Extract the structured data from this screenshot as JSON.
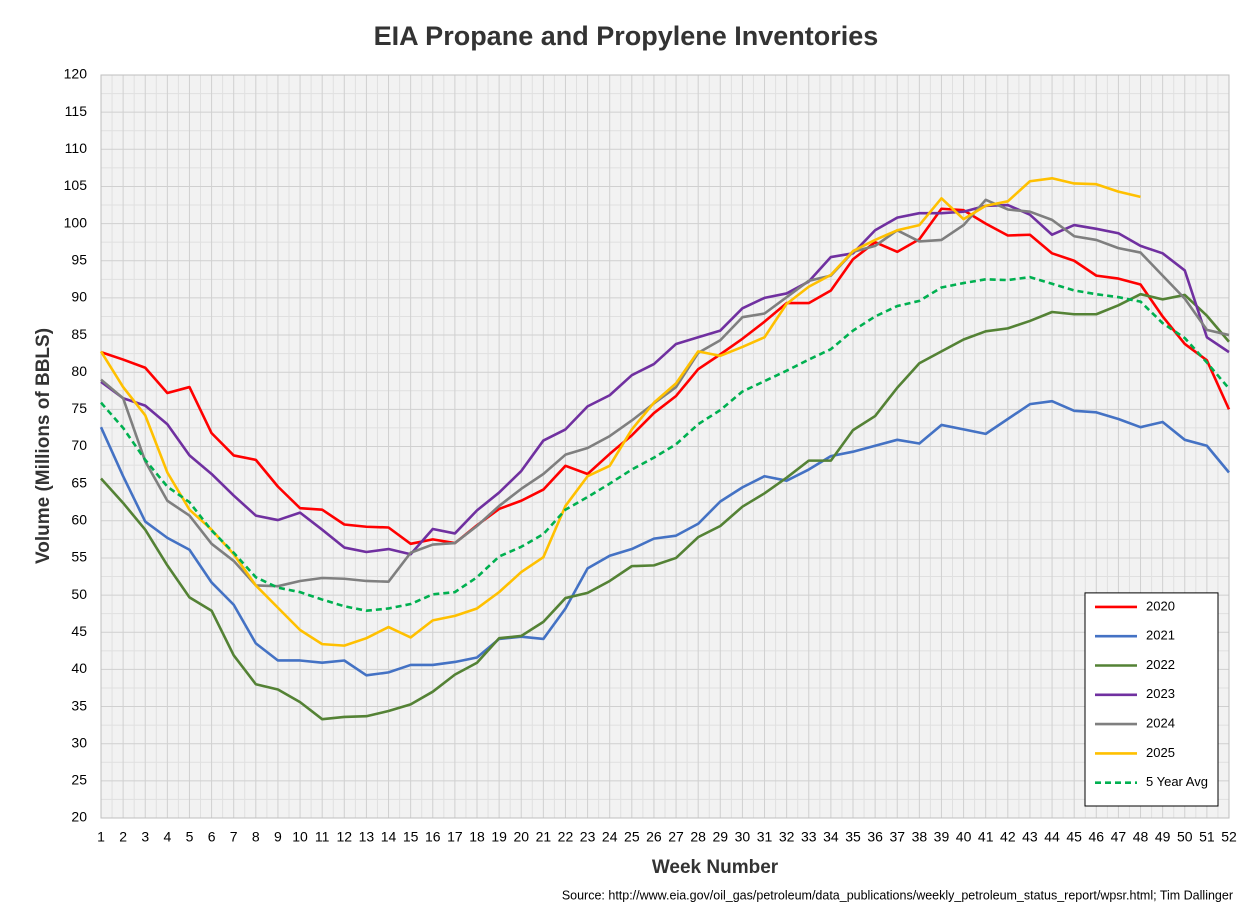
{
  "chart_data": {
    "type": "line",
    "title": "EIA Propane and Propylene Inventories",
    "xlabel": "Week Number",
    "ylabel": "Volume (Millions of BBLS)",
    "source": "Source: http://www.eia.gov/oil_gas/petroleum/data_publications/weekly_petroleum_status_report/wpsr.html; Tim Dallinger",
    "x": [
      1,
      2,
      3,
      4,
      5,
      6,
      7,
      8,
      9,
      10,
      11,
      12,
      13,
      14,
      15,
      16,
      17,
      18,
      19,
      20,
      21,
      22,
      23,
      24,
      25,
      26,
      27,
      28,
      29,
      30,
      31,
      32,
      33,
      34,
      35,
      36,
      37,
      38,
      39,
      40,
      41,
      42,
      43,
      44,
      45,
      46,
      47,
      48,
      49,
      50,
      51,
      52
    ],
    "xlim": [
      1,
      52
    ],
    "xticks": [
      1,
      2,
      3,
      4,
      5,
      6,
      7,
      8,
      9,
      10,
      11,
      12,
      13,
      14,
      15,
      16,
      17,
      18,
      19,
      20,
      21,
      22,
      23,
      24,
      25,
      26,
      27,
      28,
      29,
      30,
      31,
      32,
      33,
      34,
      35,
      36,
      37,
      38,
      39,
      40,
      41,
      42,
      43,
      44,
      45,
      46,
      47,
      48,
      49,
      50,
      51,
      52
    ],
    "ylim": [
      20,
      120
    ],
    "yticks": [
      20,
      25,
      30,
      35,
      40,
      45,
      50,
      55,
      60,
      65,
      70,
      75,
      80,
      85,
      90,
      95,
      100,
      105,
      110,
      115,
      120
    ],
    "grid": true,
    "minor_grid": true,
    "legend": "lower right",
    "series": [
      {
        "name": "2020",
        "color": "#ff0000",
        "values": [
          82.7,
          81.7,
          80.6,
          77.2,
          78,
          71.8,
          68.8,
          68.2,
          64.6,
          61.7,
          61.5,
          59.5,
          59.2,
          59.1,
          56.9,
          57.5,
          57,
          59.4,
          61.6,
          62.7,
          64.2,
          67.4,
          66.3,
          69,
          71.5,
          74.5,
          76.8,
          80.4,
          82.4,
          84.5,
          86.8,
          89.3,
          89.3,
          91,
          95.2,
          97.5,
          96.2,
          97.9,
          102,
          101.8,
          100,
          98.4,
          98.5,
          96,
          95,
          93,
          92.6,
          91.8,
          87.5,
          83.8,
          81.6,
          75
        ]
      },
      {
        "name": "2021",
        "color": "#4472c4",
        "values": [
          72.6,
          66,
          59.9,
          57.7,
          56.1,
          51.7,
          48.7,
          43.5,
          41.2,
          41.2,
          40.9,
          41.2,
          39.2,
          39.6,
          40.6,
          40.6,
          41,
          41.6,
          44.1,
          44.4,
          44.1,
          48.2,
          53.6,
          55.3,
          56.2,
          57.6,
          58,
          59.6,
          62.6,
          64.5,
          66,
          65.4,
          66.9,
          68.7,
          69.3,
          70.1,
          70.9,
          70.4,
          72.9,
          72.3,
          71.7,
          73.7,
          75.7,
          76.1,
          74.8,
          74.6,
          73.7,
          72.6,
          73.3,
          70.9,
          70.1,
          66.5
        ]
      },
      {
        "name": "2022",
        "color": "#548235",
        "values": [
          65.7,
          62.4,
          58.8,
          54,
          49.7,
          47.9,
          41.9,
          38,
          37.3,
          35.6,
          33.3,
          33.6,
          33.7,
          34.4,
          35.3,
          37,
          39.3,
          40.9,
          44.2,
          44.5,
          46.4,
          49.6,
          50.3,
          51.9,
          53.9,
          54,
          55,
          57.8,
          59.3,
          61.9,
          63.7,
          65.8,
          68.1,
          68.1,
          72.2,
          74.1,
          77.9,
          81.2,
          82.8,
          84.4,
          85.5,
          85.9,
          86.9,
          88.1,
          87.8,
          87.8,
          89,
          90.5,
          89.8,
          90.4,
          87.6,
          84.1
        ]
      },
      {
        "name": "2023",
        "color": "#7030a0",
        "values": [
          78.7,
          76.5,
          75.5,
          73,
          68.8,
          66.3,
          63.4,
          60.7,
          60.1,
          61.1,
          58.8,
          56.4,
          55.8,
          56.2,
          55.5,
          58.9,
          58.3,
          61.4,
          63.8,
          66.7,
          70.8,
          72.3,
          75.4,
          76.9,
          79.6,
          81.1,
          83.8,
          84.7,
          85.6,
          88.6,
          90,
          90.6,
          92.2,
          95.5,
          96,
          99.1,
          100.8,
          101.4,
          101.4,
          101.6,
          102.4,
          102.5,
          101.2,
          98.5,
          99.8,
          99.3,
          98.7,
          97,
          96,
          93.7,
          84.7,
          82.7
        ]
      },
      {
        "name": "2024",
        "color": "#7f7f7f",
        "values": [
          79,
          76.5,
          68,
          62.7,
          60.7,
          56.9,
          54.6,
          51.3,
          51.2,
          51.9,
          52.3,
          52.2,
          51.9,
          51.8,
          55.7,
          56.8,
          57,
          59.3,
          62,
          64.3,
          66.3,
          68.9,
          69.8,
          71.4,
          73.5,
          75.8,
          78,
          82.6,
          84.3,
          87.4,
          87.9,
          90.1,
          92.3,
          93,
          96.2,
          97,
          99.1,
          97.6,
          97.8,
          99.8,
          103.2,
          101.9,
          101.6,
          100.5,
          98.3,
          97.8,
          96.7,
          96.1,
          93,
          89.9,
          85.7,
          85
        ]
      },
      {
        "name": "2025",
        "color": "#ffc000",
        "values": [
          82.8,
          78,
          74.2,
          66.5,
          61.5,
          58.8,
          55.5,
          51.3,
          48.3,
          45.3,
          43.4,
          43.2,
          44.2,
          45.7,
          44.3,
          46.6,
          47.2,
          48.2,
          50.4,
          53.1,
          55.1,
          62,
          66,
          67.4,
          72.3,
          75.9,
          78.5,
          82.8,
          82.2,
          83.4,
          84.7,
          89.2,
          91.5,
          93.1,
          96.3,
          97.8,
          99.1,
          99.8,
          103.4,
          100.6,
          102.4,
          103,
          105.7,
          106.1,
          105.4,
          105.3,
          104.3,
          103.6,
          null,
          null,
          null,
          null
        ]
      },
      {
        "name": "5 Year Avg",
        "color": "#00b050",
        "dashed": true,
        "values": [
          75.9,
          72.5,
          68.2,
          64.6,
          62.5,
          58.7,
          55.7,
          52.4,
          51,
          50.4,
          49.4,
          48.5,
          47.9,
          48.2,
          48.8,
          50.1,
          50.4,
          52.4,
          55.2,
          56.5,
          58.2,
          61.5,
          63.2,
          65,
          66.9,
          68.5,
          70.3,
          73,
          74.9,
          77.4,
          78.8,
          80.2,
          81.7,
          83.1,
          85.6,
          87.5,
          88.9,
          89.6,
          91.4,
          92,
          92.5,
          92.4,
          92.8,
          91.9,
          91,
          90.5,
          90.1,
          89.5,
          86.6,
          84.6,
          81.3,
          77.8
        ]
      }
    ]
  }
}
